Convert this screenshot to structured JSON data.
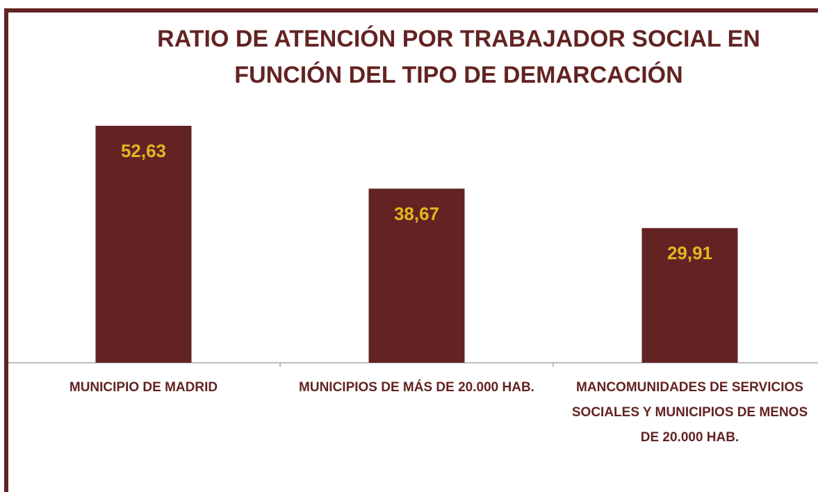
{
  "chart_data": {
    "type": "bar",
    "title": "RATIO DE ATENCIÓN POR TRABAJADOR SOCIAL EN FUNCIÓN DEL TIPO DE DEMARCACIÓN",
    "categories": [
      "MUNICIPIO DE MADRID",
      "MUNICIPIOS DE MÁS DE 20.000 HAB.",
      "MANCOMUNIDADES DE SERVICIOS SOCIALES Y MUNICIPIOS DE MENOS DE 20.000 HAB."
    ],
    "values": [
      52.63,
      38.67,
      29.91
    ],
    "value_labels": [
      "52,63",
      "38,67",
      "29,91"
    ],
    "color": "#632323"
  }
}
